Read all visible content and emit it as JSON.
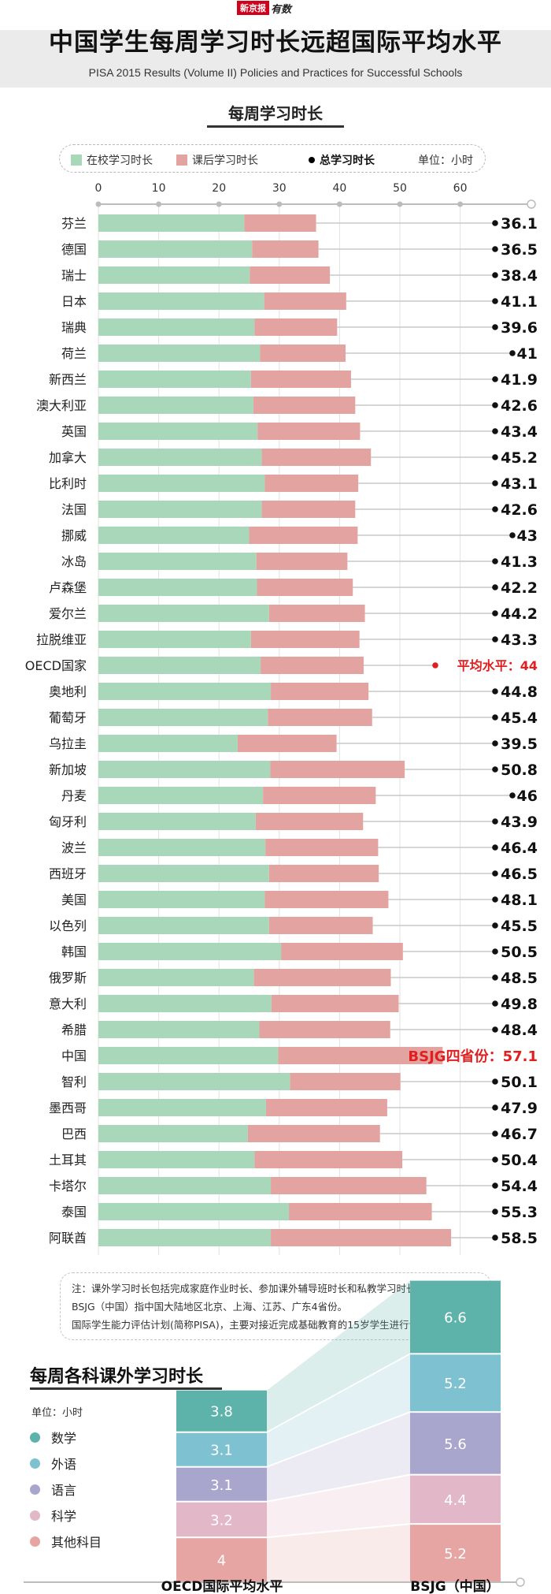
{
  "logo": {
    "brand": "新京报",
    "script": "有数"
  },
  "header": {
    "title": "中国学生每周学习时长远超国际平均水平",
    "subtitle": "PISA 2015 Results (Volume II) Policies and Practices for Successful Schools"
  },
  "chart_data": [
    {
      "type": "bar",
      "title": "每周学习时长",
      "legend": {
        "school_label": "在校学习时长",
        "after_label": "课后学习时长",
        "total_label": "总学习时长",
        "unit": "单位：小时"
      },
      "xticks": [
        "0",
        "10",
        "20",
        "30",
        "40",
        "50",
        "60"
      ],
      "xlim": [
        0,
        70
      ],
      "colors": {
        "school": "#a8d8b9",
        "after": "#e3a3a0",
        "total": "#111111",
        "highlight": "#e02020"
      },
      "rows": [
        {
          "name": "芬兰",
          "school": 24.2,
          "after": 11.9,
          "total_label": "36.1"
        },
        {
          "name": "德国",
          "school": 25.5,
          "after": 11.0,
          "total_label": "36.5"
        },
        {
          "name": "瑞士",
          "school": 25.1,
          "after": 13.3,
          "total_label": "38.4"
        },
        {
          "name": "日本",
          "school": 27.5,
          "after": 13.6,
          "total_label": "41.1"
        },
        {
          "name": "瑞典",
          "school": 25.9,
          "after": 13.7,
          "total_label": "39.6"
        },
        {
          "name": "荷兰",
          "school": 26.8,
          "after": 14.2,
          "total_label": "41"
        },
        {
          "name": "新西兰",
          "school": 25.3,
          "after": 16.6,
          "total_label": "41.9"
        },
        {
          "name": "澳大利亚",
          "school": 25.7,
          "after": 16.9,
          "total_label": "42.6"
        },
        {
          "name": "英国",
          "school": 26.4,
          "after": 17.0,
          "total_label": "43.4"
        },
        {
          "name": "加拿大",
          "school": 27.1,
          "after": 18.1,
          "total_label": "45.2"
        },
        {
          "name": "比利时",
          "school": 27.6,
          "after": 15.5,
          "total_label": "43.1"
        },
        {
          "name": "法国",
          "school": 27.1,
          "after": 15.5,
          "total_label": "42.6"
        },
        {
          "name": "挪威",
          "school": 25.0,
          "after": 18.0,
          "total_label": "43"
        },
        {
          "name": "冰岛",
          "school": 26.2,
          "after": 15.1,
          "total_label": "41.3"
        },
        {
          "name": "卢森堡",
          "school": 26.3,
          "after": 15.9,
          "total_label": "42.2"
        },
        {
          "name": "爱尔兰",
          "school": 28.3,
          "after": 15.9,
          "total_label": "44.2"
        },
        {
          "name": "拉脱维亚",
          "school": 25.3,
          "after": 18.0,
          "total_label": "43.3"
        },
        {
          "name": "OECD国家",
          "school": 26.9,
          "after": 17.1,
          "total_label": "平均水平：44",
          "highlight": true
        },
        {
          "name": "奥地利",
          "school": 28.6,
          "after": 16.2,
          "total_label": "44.8"
        },
        {
          "name": "葡萄牙",
          "school": 28.1,
          "after": 17.3,
          "total_label": "45.4"
        },
        {
          "name": "乌拉圭",
          "school": 23.1,
          "after": 16.4,
          "total_label": "39.5"
        },
        {
          "name": "新加坡",
          "school": 28.5,
          "after": 22.3,
          "total_label": "50.8"
        },
        {
          "name": "丹麦",
          "school": 27.3,
          "after": 18.7,
          "total_label": "46"
        },
        {
          "name": "匈牙利",
          "school": 26.1,
          "after": 17.8,
          "total_label": "43.9"
        },
        {
          "name": "波兰",
          "school": 27.7,
          "after": 18.7,
          "total_label": "46.4"
        },
        {
          "name": "西班牙",
          "school": 28.3,
          "after": 18.2,
          "total_label": "46.5"
        },
        {
          "name": "美国",
          "school": 27.6,
          "after": 20.5,
          "total_label": "48.1"
        },
        {
          "name": "以色列",
          "school": 28.3,
          "after": 17.2,
          "total_label": "45.5"
        },
        {
          "name": "韩国",
          "school": 30.3,
          "after": 20.2,
          "total_label": "50.5"
        },
        {
          "name": "俄罗斯",
          "school": 25.8,
          "after": 22.7,
          "total_label": "48.5"
        },
        {
          "name": "意大利",
          "school": 28.7,
          "after": 21.1,
          "total_label": "49.8"
        },
        {
          "name": "希腊",
          "school": 26.7,
          "after": 21.7,
          "total_label": "48.4"
        },
        {
          "name": "中国",
          "school": 29.8,
          "after": 27.3,
          "total_label": "BSJG四省份：57.1",
          "highlight": true
        },
        {
          "name": "智利",
          "school": 31.8,
          "after": 18.3,
          "total_label": "50.1"
        },
        {
          "name": "墨西哥",
          "school": 27.8,
          "after": 20.1,
          "total_label": "47.9"
        },
        {
          "name": "巴西",
          "school": 24.8,
          "after": 21.9,
          "total_label": "46.7"
        },
        {
          "name": "土耳其",
          "school": 25.9,
          "after": 24.5,
          "total_label": "50.4"
        },
        {
          "name": "卡塔尔",
          "school": 28.6,
          "after": 25.8,
          "total_label": "54.4"
        },
        {
          "name": "泰国",
          "school": 31.6,
          "after": 23.7,
          "total_label": "55.3"
        },
        {
          "name": "阿联酋",
          "school": 28.6,
          "after": 29.9,
          "total_label": "58.5"
        }
      ]
    },
    {
      "type": "bar",
      "stacked": true,
      "title": "每周各科课外学习时长",
      "unit": "单位：小时",
      "categories": [
        "OECD国际平均水平",
        "BSJG（中国）"
      ],
      "series": [
        {
          "name": "数学",
          "color": "#5db3aa",
          "values": [
            3.8,
            6.6
          ]
        },
        {
          "name": "外语",
          "color": "#7ec1d1",
          "values": [
            3.1,
            5.2
          ]
        },
        {
          "name": "语言",
          "color": "#a8a6cc",
          "values": [
            3.1,
            5.6
          ]
        },
        {
          "name": "科学",
          "color": "#e2b8c8",
          "values": [
            3.2,
            4.4
          ]
        },
        {
          "name": "其他科目",
          "color": "#e6a5a2",
          "values": [
            4,
            5.2
          ]
        }
      ]
    }
  ],
  "notes": [
    "注：课外学习时长包括完成家庭作业时长、参加课外辅导班时长和私教学习时长。",
    "BSJG（中国）指中国大陆地区北京、上海、江苏、广东4省份。",
    "国际学生能力评估计划(简称PISA)，主要对接近完成基础教育的15岁学生进行评估"
  ]
}
